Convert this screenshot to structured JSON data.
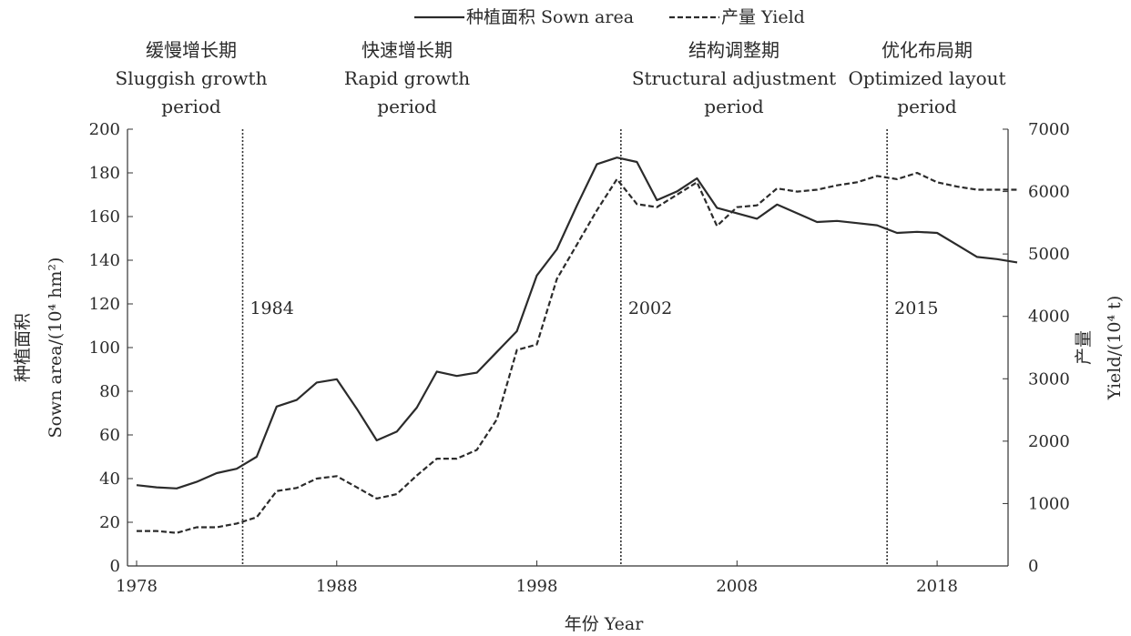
{
  "chart_data": {
    "type": "line",
    "legend_position": "top-center",
    "grid": false,
    "x_axis": {
      "label": "年份 Year",
      "range": [
        1978,
        2022
      ],
      "ticks": [
        1978,
        1988,
        1998,
        2008,
        2018
      ]
    },
    "y_axis_left": {
      "label_cn": "种植面积",
      "label_en": "Sown area/(10⁴ hm²)",
      "range": [
        0,
        200
      ],
      "ticks": [
        0,
        20,
        40,
        60,
        80,
        100,
        120,
        140,
        160,
        180,
        200
      ]
    },
    "y_axis_right": {
      "label_cn": "产量",
      "label_en": "Yield/(10⁴ t)",
      "range": [
        0,
        7000
      ],
      "ticks": [
        0,
        1000,
        2000,
        3000,
        4000,
        5000,
        6000,
        7000
      ]
    },
    "series": [
      {
        "name": "种植面积 Sown area",
        "axis": "left",
        "style": "solid",
        "x": [
          1978,
          1979,
          1980,
          1981,
          1982,
          1983,
          1984,
          1985,
          1986,
          1987,
          1988,
          1989,
          1990,
          1991,
          1992,
          1993,
          1994,
          1995,
          1996,
          1997,
          1998,
          1999,
          2000,
          2001,
          2002,
          2003,
          2004,
          2005,
          2006,
          2007,
          2008,
          2009,
          2010,
          2011,
          2012,
          2013,
          2014,
          2015,
          2016,
          2017,
          2018,
          2019,
          2020,
          2021,
          2022
        ],
        "values": [
          37,
          36,
          35.5,
          38.5,
          42.5,
          44.5,
          50,
          73,
          76,
          84,
          85.5,
          72,
          57.5,
          61.5,
          72.5,
          89,
          87,
          88.5,
          98,
          107.5,
          133,
          145,
          165,
          184,
          187,
          185,
          167.5,
          171.5,
          177.5,
          164,
          161.5,
          159,
          165.5,
          161.5,
          157.5,
          158,
          157,
          156,
          152.5,
          153,
          152.5,
          147,
          141.5,
          140.5,
          139
        ]
      },
      {
        "name": "产量 Yield",
        "axis": "right",
        "style": "dashed",
        "x": [
          1978,
          1979,
          1980,
          1981,
          1982,
          1983,
          1984,
          1985,
          1986,
          1987,
          1988,
          1989,
          1990,
          1991,
          1992,
          1993,
          1994,
          1995,
          1996,
          1997,
          1998,
          1999,
          2000,
          2001,
          2002,
          2003,
          2004,
          2005,
          2006,
          2007,
          2008,
          2009,
          2010,
          2011,
          2012,
          2013,
          2014,
          2015,
          2016,
          2017,
          2018,
          2019,
          2020,
          2021,
          2022
        ],
        "values": [
          560,
          560,
          530,
          620,
          620,
          680,
          780,
          1200,
          1250,
          1400,
          1440,
          1260,
          1080,
          1150,
          1450,
          1720,
          1720,
          1860,
          2350,
          3460,
          3550,
          4600,
          5150,
          5700,
          6200,
          5800,
          5750,
          5950,
          6150,
          5450,
          5750,
          5780,
          6050,
          6000,
          6030,
          6100,
          6150,
          6250,
          6200,
          6300,
          6150,
          6080,
          6030,
          6030,
          6030
        ]
      }
    ],
    "periods": [
      {
        "label_cn": "缓慢增长期",
        "label_en_1": "Sluggish growth",
        "label_en_2": "period"
      },
      {
        "label_cn": "快速增长期",
        "label_en_1": "Rapid growth",
        "label_en_2": "period"
      },
      {
        "label_cn": "结构调整期",
        "label_en_1": "Structural adjustment",
        "label_en_2": "period"
      },
      {
        "label_cn": "优化布局期",
        "label_en_1": "Optimized layout",
        "label_en_2": "period"
      }
    ],
    "markers": [
      {
        "year": 1983.3,
        "label": "1984"
      },
      {
        "year": 2002.2,
        "label": "2002"
      },
      {
        "year": 2015.5,
        "label": "2015"
      }
    ]
  }
}
